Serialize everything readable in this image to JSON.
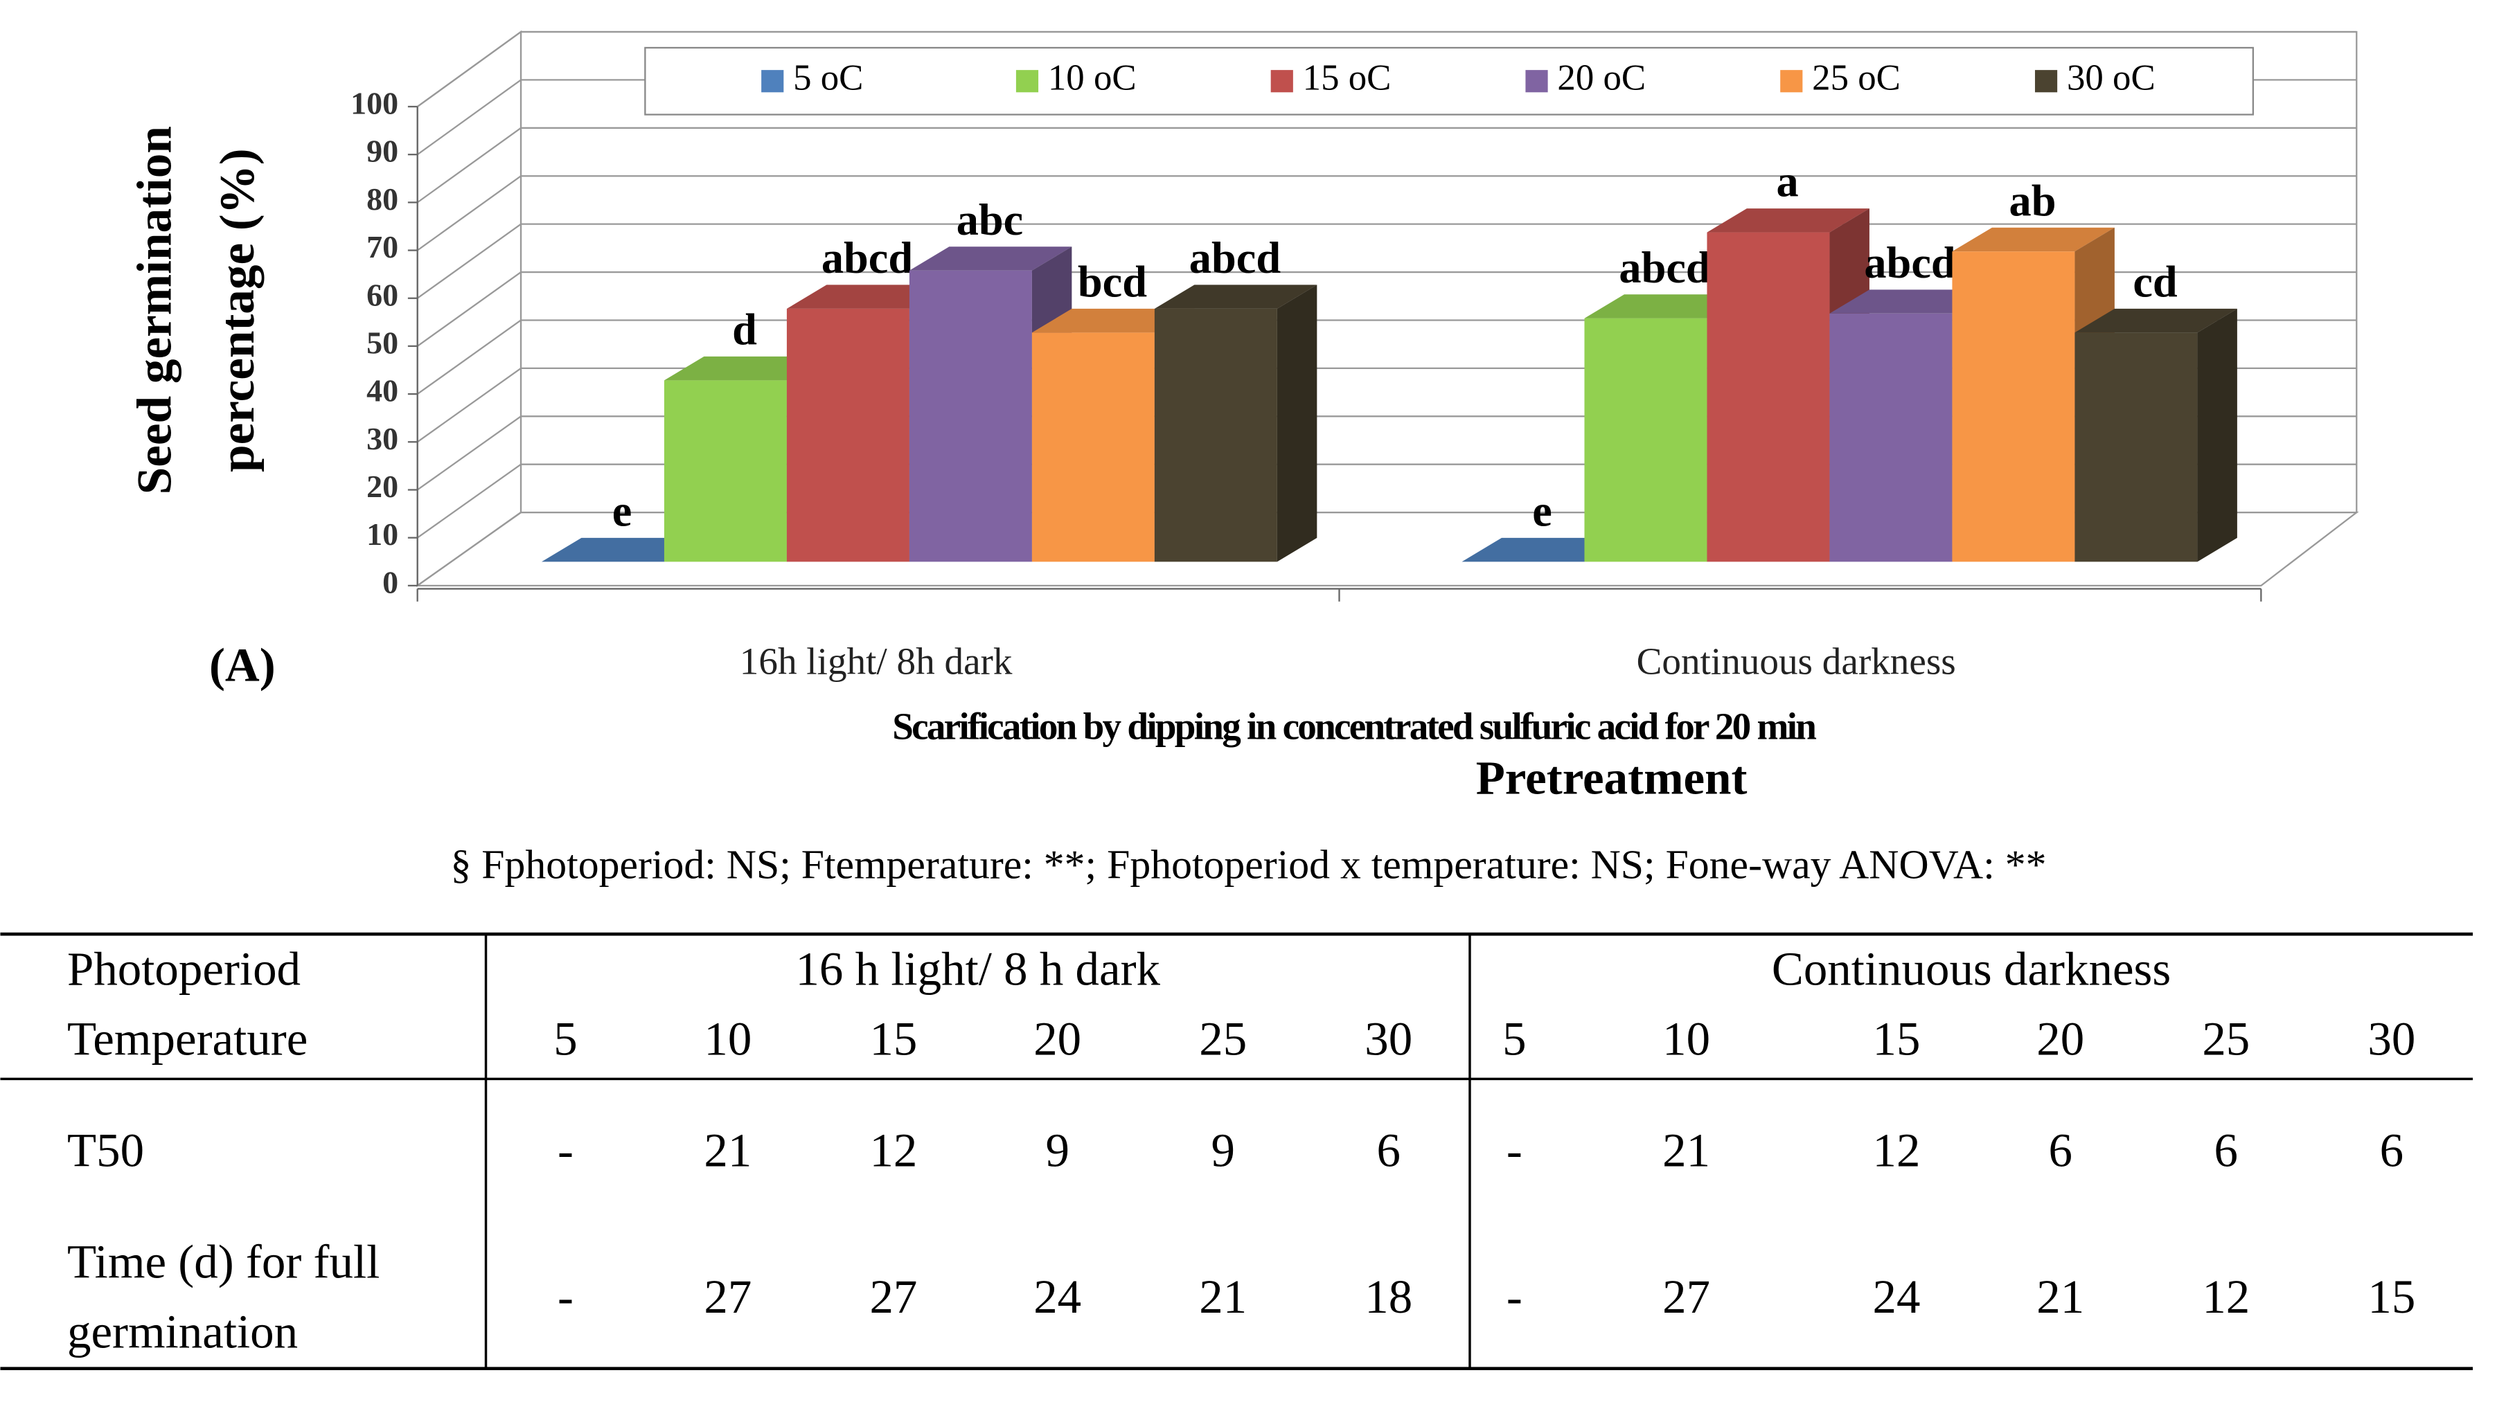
{
  "chart_data": {
    "type": "bar3d",
    "ylabel": [
      "Seed germination",
      "percentage (%)"
    ],
    "panel_label": "(A)",
    "categories": [
      "16h light/ 8h dark",
      "Continuous darkness"
    ],
    "xlabel": [
      "Scarification by dipping in concentrated sulfuric acid  for 20 min",
      "Pretreatment"
    ],
    "series": [
      {
        "name": "5 oC",
        "color": "#4f81bd",
        "values": [
          0,
          0
        ],
        "letters": [
          "e",
          "e"
        ]
      },
      {
        "name": "10 oC",
        "color": "#92d050",
        "values": [
          38,
          51
        ],
        "letters": [
          "d",
          "abcd"
        ]
      },
      {
        "name": "15 oC",
        "color": "#c0504d",
        "values": [
          53,
          69
        ],
        "letters": [
          "abcd",
          "a"
        ]
      },
      {
        "name": "20 oC",
        "color": "#8064a2",
        "values": [
          61,
          52
        ],
        "letters": [
          "abc",
          "abcd"
        ]
      },
      {
        "name": "25 oC",
        "color": "#f79646",
        "values": [
          48,
          65
        ],
        "letters": [
          "bcd",
          "ab"
        ]
      },
      {
        "name": "30 oC",
        "color": "#4b4330",
        "values": [
          53,
          48
        ],
        "letters": [
          "abcd",
          "cd"
        ]
      }
    ],
    "ylim": [
      0,
      100
    ],
    "yticks": [
      0,
      10,
      20,
      30,
      40,
      50,
      60,
      70,
      80,
      90,
      100
    ],
    "grid": true,
    "legend": "top"
  },
  "note": "§ Fphotoperiod: NS; Ftemperature: **; Fphotoperiod x temperature: NS; Fone-way ANOVA: **",
  "table": {
    "header": [
      "Photoperiod",
      "16 h light/ 8 h dark",
      "Continuous darkness"
    ],
    "temperature_row": [
      "Temperature",
      "5",
      "10",
      "15",
      "20",
      "25",
      "30",
      "5",
      "10",
      "15",
      "20",
      "25",
      "30"
    ],
    "rows": [
      [
        [
          "T50"
        ],
        "-",
        "21",
        "12",
        "9",
        "9",
        "6",
        "-",
        "21",
        "12",
        "6",
        "6",
        "6"
      ],
      [
        [
          "Time (d) for full",
          "germination"
        ],
        "-",
        "27",
        "27",
        "24",
        "21",
        "18",
        "-",
        "27",
        "24",
        "21",
        "12",
        "15"
      ]
    ]
  }
}
